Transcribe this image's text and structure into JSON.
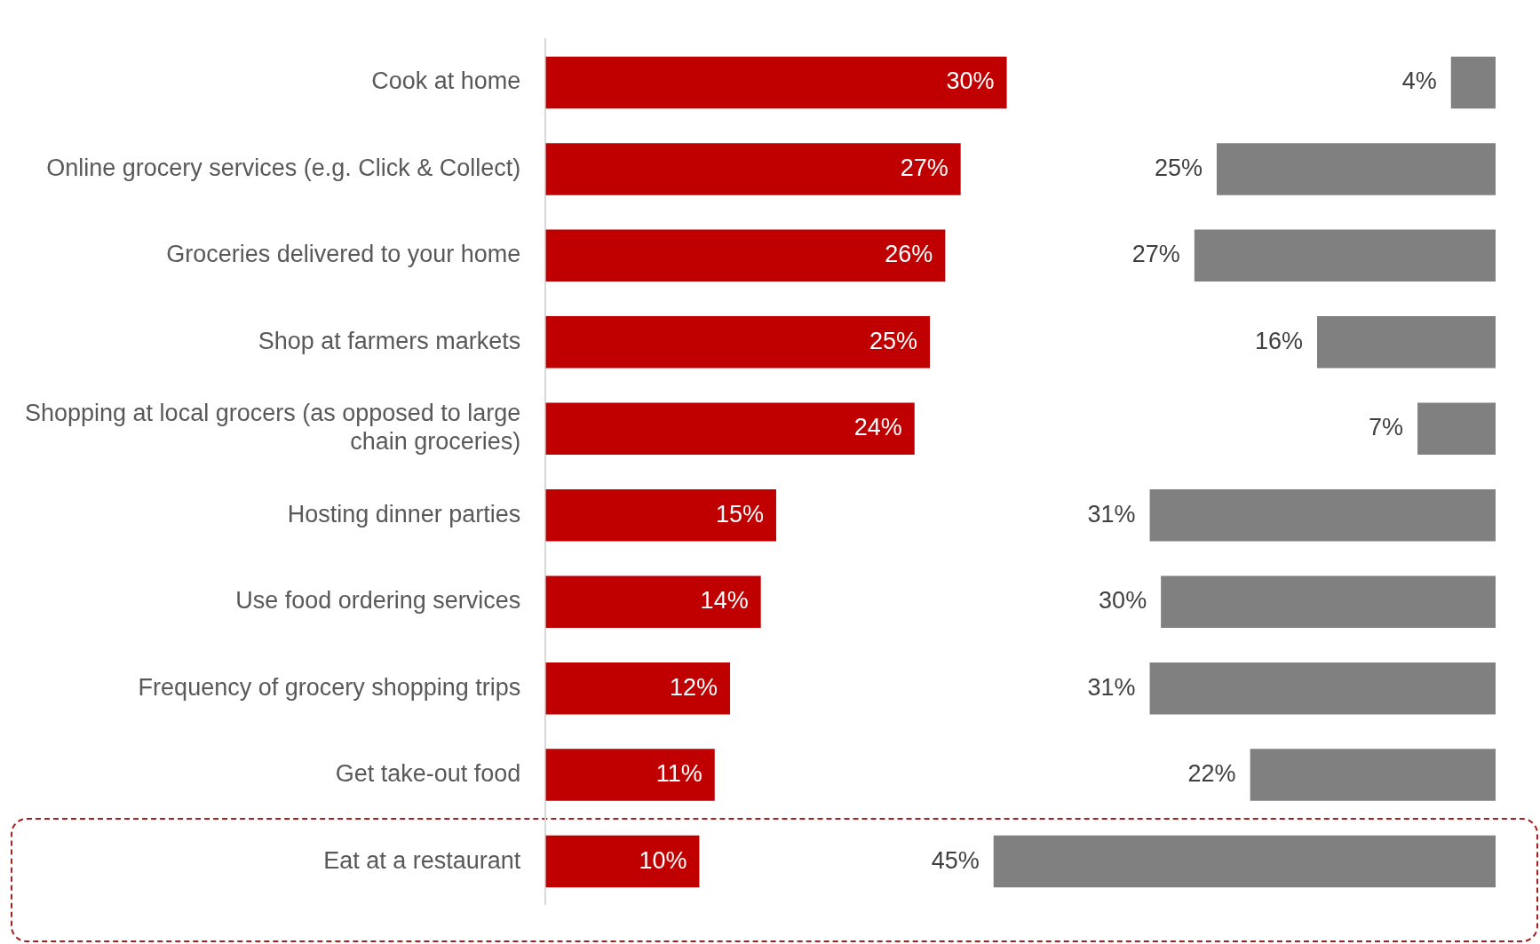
{
  "chart_data": [
    {
      "type": "bar",
      "orientation": "horizontal",
      "categories": [
        "Cook at home",
        "Online grocery services (e.g. Click & Collect)",
        "Groceries delivered to your home",
        "Shop at farmers markets",
        "Shopping at local grocers (as opposed to large chain groceries)",
        "Hosting dinner parties",
        "Use food ordering services",
        "Frequency of grocery shopping trips",
        "Get take-out food",
        "Eat at a restaurant"
      ],
      "series": [
        {
          "color": "#c00000",
          "values": [
            30,
            27,
            26,
            25,
            24,
            15,
            14,
            12,
            11,
            10
          ],
          "value_labels": [
            "30%",
            "27%",
            "26%",
            "25%",
            "24%",
            "15%",
            "14%",
            "12%",
            "11%",
            "10%"
          ]
        }
      ],
      "tick_labels": "y",
      "legend": false
    },
    {
      "type": "bar",
      "orientation": "horizontal",
      "categories": [
        null,
        null,
        null,
        null,
        null,
        null,
        null,
        null,
        null,
        null
      ],
      "series": [
        {
          "color": "#808080",
          "values": [
            4,
            25,
            27,
            16,
            7,
            31,
            30,
            31,
            22,
            45
          ],
          "value_labels": [
            "4%",
            "25%",
            "27%",
            "16%",
            "7%",
            "31%",
            "30%",
            "31%",
            "22%",
            "45%"
          ]
        }
      ],
      "tick_labels": false,
      "legend": false
    }
  ]
}
